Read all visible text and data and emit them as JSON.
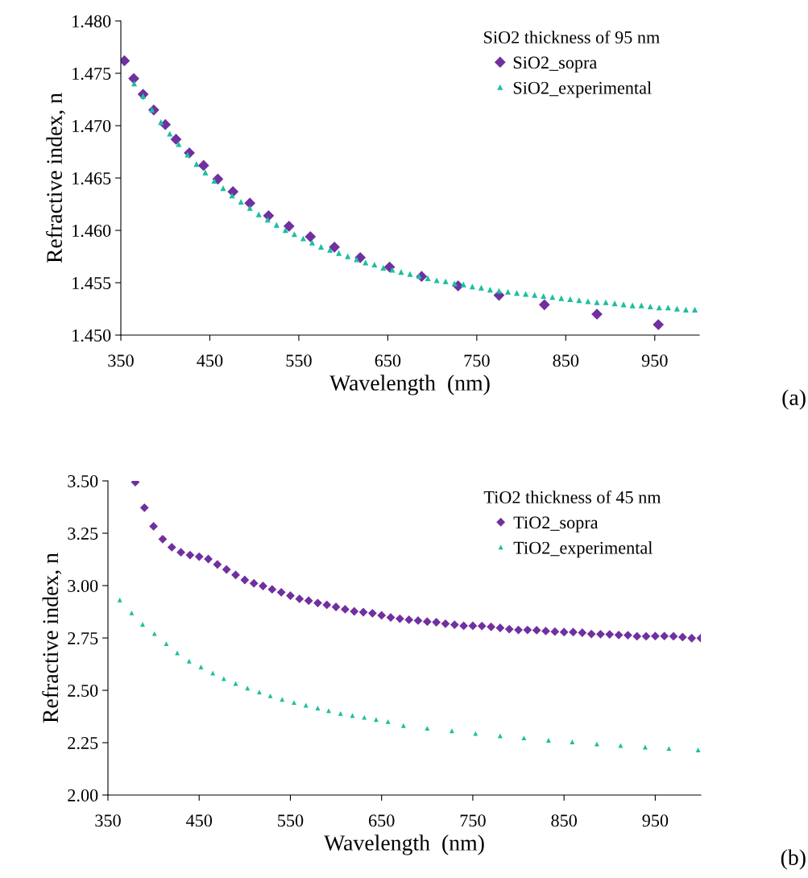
{
  "chart_data": [
    {
      "type": "scatter",
      "xlabel": "Wavelength  (nm)",
      "ylabel": "Refractive index, n",
      "legend_title": "SiO2 thickness of 95 nm",
      "annotations": [
        "(a)"
      ],
      "legend": "top right",
      "grid": false,
      "xlim": [
        350,
        1000
      ],
      "xticks": [
        350,
        450,
        550,
        650,
        750,
        850,
        950
      ],
      "ylim": [
        1.45,
        1.48
      ],
      "yticks": [
        {
          "value": 1.45,
          "label": "1.450"
        },
        {
          "value": 1.455,
          "label": "1.455"
        },
        {
          "value": 1.46,
          "label": "1.460"
        },
        {
          "value": 1.465,
          "label": "1.465"
        },
        {
          "value": 1.47,
          "label": "1.470"
        },
        {
          "value": 1.475,
          "label": "1.475"
        },
        {
          "value": 1.48,
          "label": "1.480"
        }
      ],
      "series": [
        {
          "name": "SiO2_sopra",
          "color": "#7030a0",
          "marker": "diamond",
          "x": [
            354,
            364.5,
            375,
            387,
            400,
            412,
            427,
            443,
            459,
            476,
            495,
            516,
            539,
            563,
            590,
            619,
            652,
            688,
            729,
            775,
            826,
            885,
            954
          ],
          "values": [
            1.4762,
            1.4745,
            1.473,
            1.4715,
            1.4701,
            1.4687,
            1.4674,
            1.4662,
            1.4649,
            1.4637,
            1.4626,
            1.4614,
            1.4604,
            1.4594,
            1.4584,
            1.4574,
            1.4565,
            1.4556,
            1.4547,
            1.4538,
            1.4529,
            1.452,
            1.451
          ]
        },
        {
          "name": "SiO2_experimental",
          "color": "#1dbfa0",
          "marker": "triangle",
          "x": [
            365,
            375,
            385,
            395,
            405,
            415,
            425,
            435,
            445,
            455,
            465,
            475,
            485,
            495,
            505,
            515,
            525,
            535,
            545,
            555,
            565,
            575,
            585,
            595,
            605,
            615,
            625,
            635,
            645,
            655,
            665,
            675,
            685,
            695,
            705,
            715,
            725,
            735,
            745,
            755,
            765,
            775,
            785,
            795,
            805,
            815,
            825,
            835,
            845,
            855,
            865,
            875,
            885,
            895,
            905,
            915,
            925,
            935,
            945,
            955,
            965,
            975,
            985,
            995
          ],
          "values": [
            1.474,
            1.4728,
            1.4715,
            1.4703,
            1.4692,
            1.4682,
            1.4672,
            1.4663,
            1.4655,
            1.4647,
            1.464,
            1.4633,
            1.4627,
            1.4621,
            1.4615,
            1.461,
            1.4605,
            1.46,
            1.4596,
            1.4592,
            1.4588,
            1.4584,
            1.4581,
            1.4578,
            1.4575,
            1.4572,
            1.4569,
            1.4567,
            1.4564,
            1.4562,
            1.456,
            1.4558,
            1.4556,
            1.4554,
            1.4552,
            1.4551,
            1.4549,
            1.4548,
            1.4546,
            1.4545,
            1.4543,
            1.4542,
            1.4541,
            1.454,
            1.4539,
            1.4538,
            1.4537,
            1.4536,
            1.4535,
            1.4534,
            1.4533,
            1.4532,
            1.4531,
            1.4531,
            1.453,
            1.4529,
            1.4528,
            1.4528,
            1.4527,
            1.4526,
            1.4526,
            1.4525,
            1.4524,
            1.4524
          ]
        }
      ]
    },
    {
      "type": "scatter",
      "xlabel": "Wavelength  (nm)",
      "ylabel": "Refractive index, n",
      "legend_title": "TiO2 thickness of 45 nm",
      "annotations": [
        "(b)"
      ],
      "legend": "top right",
      "grid": false,
      "xlim": [
        350,
        1000
      ],
      "xticks": [
        350,
        450,
        550,
        650,
        750,
        850,
        950
      ],
      "ylim": [
        2.0,
        3.5
      ],
      "yticks": [
        {
          "value": 2.0,
          "label": "2.00"
        },
        {
          "value": 2.25,
          "label": "2.25"
        },
        {
          "value": 2.5,
          "label": "2.50"
        },
        {
          "value": 2.75,
          "label": "2.75"
        },
        {
          "value": 3.0,
          "label": "3.00"
        },
        {
          "value": 3.25,
          "label": "3.25"
        },
        {
          "value": 3.5,
          "label": "3.50"
        }
      ],
      "series": [
        {
          "name": "TiO2_sopra",
          "color": "#7030a0",
          "marker": "diamond",
          "x": [
            380,
            390,
            400,
            410,
            420,
            430,
            440,
            450,
            460,
            470,
            480,
            490,
            500,
            510,
            520,
            530,
            540,
            550,
            560,
            570,
            580,
            590,
            600,
            610,
            620,
            630,
            640,
            650,
            660,
            670,
            680,
            690,
            700,
            710,
            720,
            730,
            740,
            750,
            760,
            770,
            780,
            790,
            800,
            810,
            820,
            830,
            840,
            850,
            860,
            870,
            880,
            890,
            900,
            910,
            920,
            930,
            940,
            950,
            960,
            970,
            980,
            990,
            1000
          ],
          "values": [
            3.494,
            3.372,
            3.283,
            3.222,
            3.183,
            3.159,
            3.146,
            3.138,
            3.127,
            3.101,
            3.077,
            3.051,
            3.027,
            3.011,
            2.998,
            2.982,
            2.968,
            2.952,
            2.937,
            2.928,
            2.917,
            2.908,
            2.898,
            2.887,
            2.877,
            2.873,
            2.868,
            2.858,
            2.848,
            2.842,
            2.837,
            2.833,
            2.828,
            2.825,
            2.818,
            2.813,
            2.808,
            2.808,
            2.807,
            2.803,
            2.798,
            2.792,
            2.788,
            2.788,
            2.787,
            2.783,
            2.78,
            2.778,
            2.778,
            2.775,
            2.769,
            2.768,
            2.767,
            2.764,
            2.763,
            2.758,
            2.758,
            2.759,
            2.759,
            2.758,
            2.754,
            2.749,
            2.749
          ]
        },
        {
          "name": "TiO2_experimental",
          "color": "#1dbfa0",
          "marker": "triangle",
          "x": [
            363,
            376,
            388,
            401,
            414,
            426,
            439,
            452,
            465,
            477,
            490,
            503,
            516,
            528,
            541,
            554,
            567,
            580,
            592,
            605,
            618,
            631,
            644,
            657,
            674,
            700,
            727,
            753,
            780,
            806,
            833,
            859,
            886,
            912,
            939,
            965,
            997
          ],
          "values": [
            2.93,
            2.868,
            2.814,
            2.769,
            2.721,
            2.677,
            2.638,
            2.61,
            2.581,
            2.554,
            2.531,
            2.509,
            2.49,
            2.472,
            2.455,
            2.44,
            2.427,
            2.414,
            2.401,
            2.388,
            2.378,
            2.369,
            2.359,
            2.349,
            2.33,
            2.317,
            2.305,
            2.292,
            2.281,
            2.271,
            2.26,
            2.252,
            2.242,
            2.235,
            2.227,
            2.221,
            2.214
          ]
        }
      ]
    }
  ]
}
